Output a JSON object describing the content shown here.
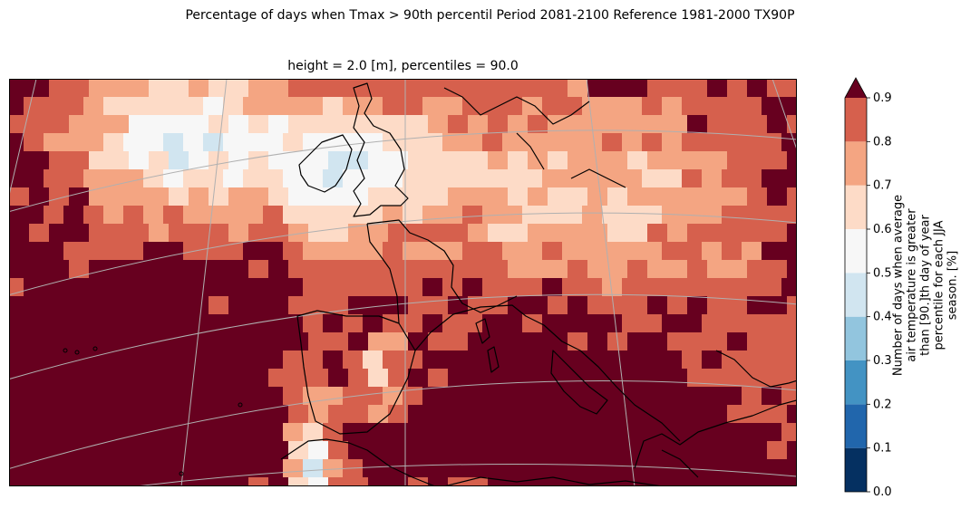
{
  "suptitle": "Percentage of days when Tmax > 90th percentil Period 2081-2100 Reference 1981-2000 TX90P",
  "chart_data": {
    "type": "heatmap",
    "title": "height = 2.0 [m], percentiles = 90.0",
    "region": "Europe / North Atlantic",
    "projection": "conic, lat/lon graticule shown",
    "colorbar": {
      "label_lines": [
        "Number of days when average",
        "air temperature is greater",
        "than [90.]th day of year",
        "percentile for each JJA",
        "season. [%]"
      ],
      "levels": [
        0.0,
        0.1,
        0.2,
        0.3,
        0.4,
        0.5,
        0.6,
        0.7,
        0.8,
        0.9
      ],
      "tick_labels": [
        "0.0",
        "0.1",
        "0.2",
        "0.3",
        "0.4",
        "0.5",
        "0.6",
        "0.7",
        "0.8",
        "0.9"
      ],
      "colors": [
        "#053061",
        "#2166ac",
        "#4393c3",
        "#92c5de",
        "#d1e5f0",
        "#f7f7f7",
        "#fddbc7",
        "#f4a582",
        "#d6604d",
        "#b2182b"
      ],
      "extend_max_color": "#67001f",
      "extend": "max",
      "colormap": "RdBu_r"
    },
    "field_summary": "Values mostly 0.8-0.9+ over land and sea; lower values (0.5-0.7) over North Atlantic/UK waters and North Sea; lowest values (0.3-0.5) along the Atlantic coast of Portugal and Morocco."
  }
}
